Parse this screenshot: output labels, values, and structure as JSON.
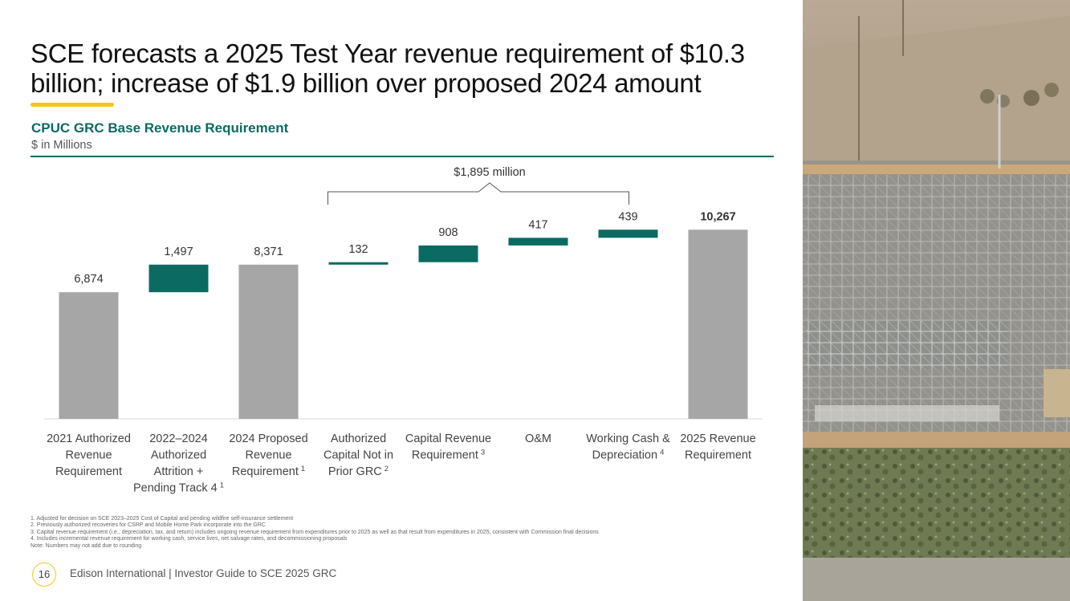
{
  "slide": {
    "title": "SCE forecasts a 2025 Test Year revenue requirement of $10.3 billion; increase of $1.9 billion over proposed 2024 amount",
    "page_number": "16",
    "footer": "Edison International | Investor Guide to SCE 2025 GRC"
  },
  "chart_header": {
    "title": "CPUC GRC Base Revenue Requirement",
    "subtitle": "$ in Millions"
  },
  "colors": {
    "total_bar": "#a6a6a6",
    "delta_bar": "#0b6b63",
    "accent": "#f5c518",
    "header_text": "#0b6b63"
  },
  "chart_data": {
    "type": "bar",
    "subtype": "waterfall",
    "bracket_label": "$1,895 million",
    "bars": [
      {
        "category": [
          "2021 Authorized",
          "Revenue",
          "Requirement"
        ],
        "value": 6874,
        "label": "6,874",
        "kind": "total"
      },
      {
        "category": [
          "2022–2024",
          "Authorized",
          "Attrition +",
          "Pending Track 4"
        ],
        "sup": "1",
        "value": 1497,
        "label": "1,497",
        "kind": "delta"
      },
      {
        "category": [
          "2024 Proposed",
          "Revenue",
          "Requirement"
        ],
        "sup": "1",
        "value": 8371,
        "label": "8,371",
        "kind": "total"
      },
      {
        "category": [
          "Authorized",
          "Capital Not in",
          "Prior GRC"
        ],
        "sup": "2",
        "value": 132,
        "label": "132",
        "kind": "delta"
      },
      {
        "category": [
          "Capital Revenue",
          "Requirement"
        ],
        "sup": "3",
        "value": 908,
        "label": "908",
        "kind": "delta"
      },
      {
        "category": [
          "O&M"
        ],
        "value": 417,
        "label": "417",
        "kind": "delta"
      },
      {
        "category": [
          "Working Cash &",
          "Depreciation"
        ],
        "sup": "4",
        "value": 439,
        "label": "439",
        "kind": "delta"
      },
      {
        "category": [
          "2025 Revenue",
          "Requirement"
        ],
        "value": 10267,
        "label": "10,267",
        "kind": "total",
        "bold": true
      }
    ]
  },
  "footnotes": [
    "1.   Adjusted for decision on SCE 2023–2025 Cost of Capital and pending wildfire self-insurance settlement",
    "2.   Previously authorized recoveries for CSRP and Mobile Home Park incorporate into the GRC",
    "3.   Capital revenue requirement (i.e., depreciation, tax, and return) includes ongoing revenue requirement from expenditures prior to 2025 as well as that result from expenditures in 2025, consistent with Commission final decisions",
    "4.   Includes incremental revenue requirement for working cash, service lives, net salvage rates, and decommissioning proposals",
    "Note: Numbers may not add due to rounding"
  ]
}
